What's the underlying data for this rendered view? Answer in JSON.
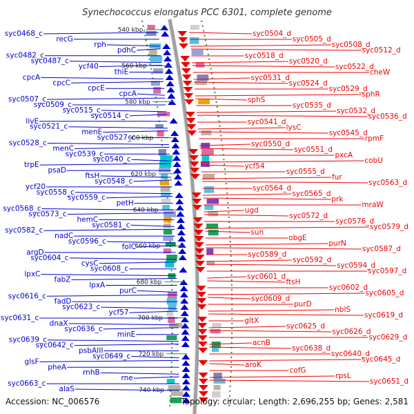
{
  "title": "Synechococcus elongatus PCC 6301, complete genome",
  "accession": "Accession: NC_006576",
  "topology": "Topology: circular; Length: 2,696,255 bp; Genes: 2,581",
  "colors": {
    "minus_strand": "#0000cc",
    "plus_strand": "#ee0000",
    "backbone": "#999999",
    "tick": "#2a8a2a"
  },
  "kbp_labels": [
    "540 kbp",
    "560 kbp",
    "580 kbp",
    "600 kbp",
    "620 kbp",
    "640 kbp",
    "660 kbp",
    "680 kbp",
    "700 kbp",
    "720 kbp",
    "740 kbp"
  ],
  "left_labels": [
    "syc0468_c",
    "recG",
    "rph",
    "pdhC",
    "syc0482_c",
    "syc0487_c",
    "ycf40",
    "thiE",
    "cpcA",
    "cpcC",
    "cpcE",
    "cpcA",
    "syc0507_c",
    "syc0509_c",
    "syc0515_c",
    "syc0514_c",
    "livE",
    "syc0521_c",
    "menE",
    "syc0527_c",
    "syc0528_c",
    "menC",
    "syc0539_c",
    "syc0540_c",
    "trpE",
    "psaD",
    "ftsH",
    "syc0548_c",
    "ycf20",
    "syc0558_c",
    "syc0559_c",
    "petH",
    "syc0568_c",
    "syc0573_c",
    "hemC",
    "syc0581_c",
    "syc0582_c",
    "nadC",
    "syc0596_c",
    "folC",
    "argD",
    "syc0604_c",
    "cysC",
    "syc0608_c",
    "lpxC",
    "fabZ",
    "lpxA",
    "purC",
    "syc0616_c",
    "fadD",
    "syc0623_c",
    "ycf57",
    "syc0631_c",
    "dnaX",
    "syc0636_c",
    "minE",
    "syc0639_c",
    "syc0642_c",
    "psbAIII",
    "syc0649_c",
    "glsF",
    "pheA",
    "rnhB",
    "rne",
    "syc0663_c",
    "alaS"
  ],
  "right_labels": [
    "syc0504_d",
    "syc0505_d",
    "syc0508_d",
    "syc0512_d",
    "syc0518_d",
    "syc0520_d",
    "syc0522_d",
    "cheW",
    "syc0531_d",
    "syc0524_d",
    "syc0529_d",
    "sphR",
    "sphS",
    "syc0535_d",
    "syc0532_d",
    "syc0536_d",
    "syc0541_d",
    "lysC",
    "syc0545_d",
    "rpmF",
    "syc0550_d",
    "syc0551_d",
    "pxcA",
    "cobU",
    "ycf54",
    "syc0555_d",
    "fur",
    "syc0563_d",
    "syc0564_d",
    "syc0565_d",
    "prk",
    "mraW",
    "ugd",
    "syc0572_d",
    "syc0576_d",
    "syc0579_d",
    "sun",
    "obgE",
    "purN",
    "syc0587_d",
    "syc0589_d",
    "syc0592_d",
    "syc0594_d",
    "syc0597_d",
    "syc0601_d",
    "ftsH",
    "syc0602_d",
    "syc0605_d",
    "syc0609_d",
    "purD",
    "nblS",
    "syc0619_d",
    "gltX",
    "syc0625_d",
    "syc0626_d",
    "syc0629_d",
    "acnB",
    "syc0638_d",
    "syc0640_d",
    "syc0645_d",
    "aroK",
    "cofG",
    "rpsL",
    "syc0651_d"
  ]
}
